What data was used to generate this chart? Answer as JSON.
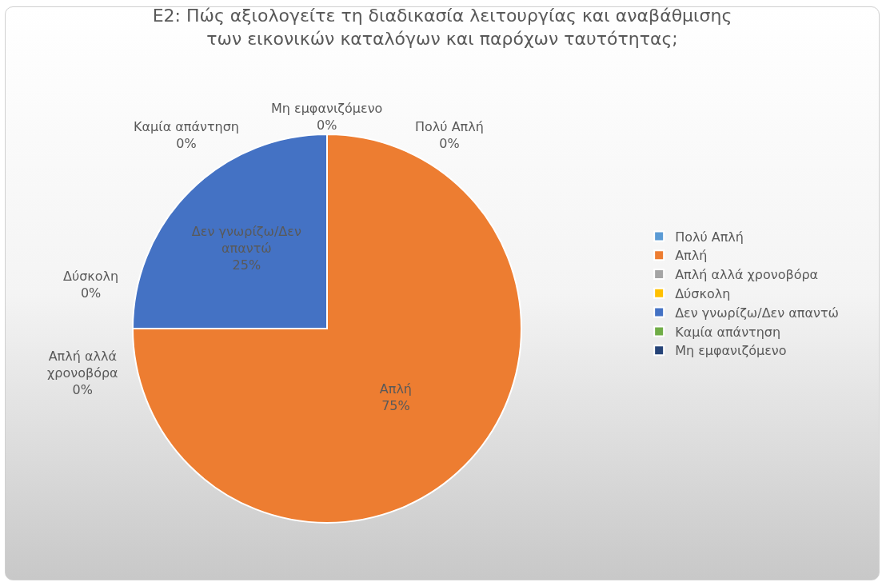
{
  "chart_data": {
    "type": "pie",
    "title": "E2: Πώς αξιολογείτε τη διαδικασία λειτουργίας και αναβάθμισης\nτων εικονικών καταλόγων και παρόχων ταυτότητας;",
    "categories": [
      "Πολύ Απλή",
      "Απλή",
      "Απλή αλλά χρονοβόρα",
      "Δύσκολη",
      "Δεν γνωρίζω/Δεν απαντώ",
      "Καμία απάντηση",
      "Μη εμφανιζόμενο"
    ],
    "values": [
      0,
      75,
      0,
      0,
      25,
      0,
      0
    ],
    "colors": [
      "#5b9bd5",
      "#ed7d31",
      "#a5a5a5",
      "#ffc000",
      "#4472c4",
      "#70ad47",
      "#264478"
    ],
    "value_labels": [
      "0%",
      "75%",
      "0%",
      "0%",
      "25%",
      "0%",
      "0%"
    ],
    "legend": "right"
  }
}
